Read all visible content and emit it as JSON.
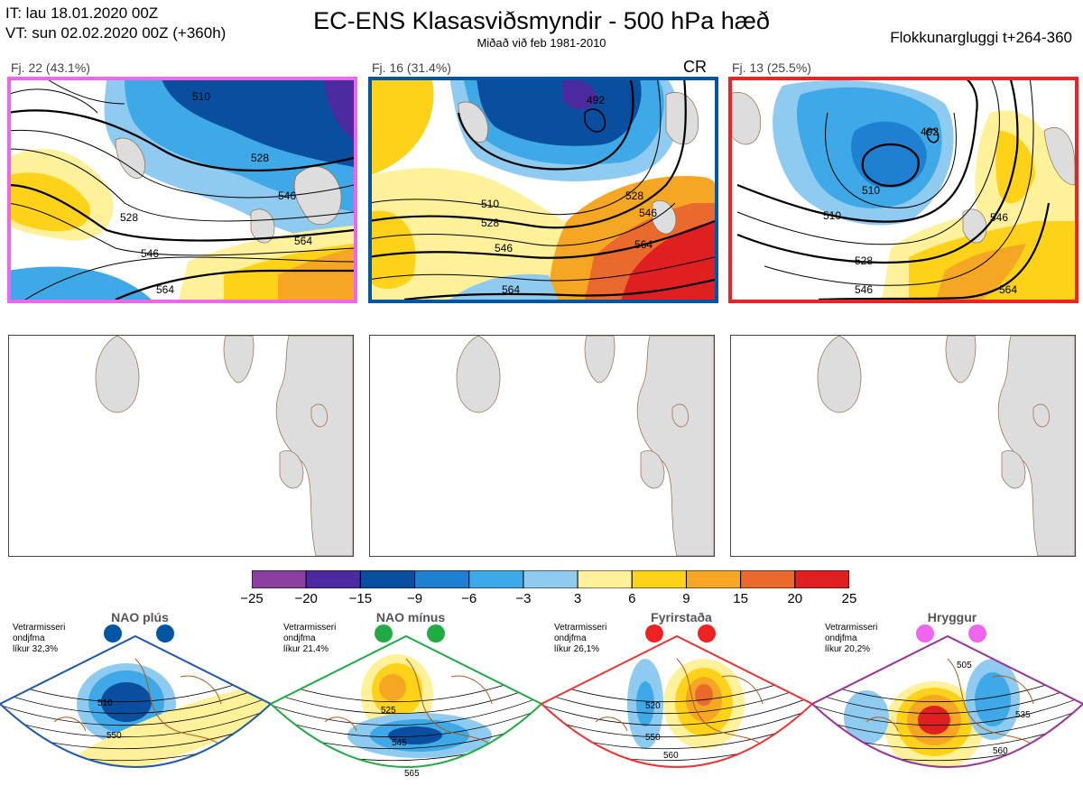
{
  "header": {
    "it_line": "IT: lau 18.01.2020 00Z",
    "vt_line": "VT: sun 02.02.2020 00Z  (+360h)",
    "title": "EC-ENS Klasasviðsmyndir - 500 hPa hæð",
    "subtitle": "Miðað við feb 1981-2010",
    "window": "Flokkunargluggi t+264-360"
  },
  "panels": [
    {
      "label": "Fj. 22 (43.1%)",
      "tag": "",
      "border_color": "#ee66ee",
      "contour_labels": [
        "528",
        "528",
        "546",
        "546",
        "564",
        "564",
        "510"
      ]
    },
    {
      "label": "Fj. 16 (31.4%)",
      "tag": "CR",
      "border_color": "#0055a4",
      "contour_labels": [
        "492",
        "510",
        "528",
        "528",
        "546",
        "546",
        "564",
        "564"
      ]
    },
    {
      "label": "Fj. 13 (25.5%)",
      "tag": "",
      "border_color": "#ee2222",
      "contour_labels": [
        "492",
        "510",
        "510",
        "528",
        "546",
        "546",
        "564"
      ]
    }
  ],
  "colorbar": {
    "ticks": [
      "−25",
      "−20",
      "−15",
      "−9",
      "−6",
      "−3",
      "3",
      "6",
      "9",
      "15",
      "20",
      "25"
    ],
    "colors": [
      "#8b3fa0",
      "#4b2aa0",
      "#0a4ea0",
      "#1f7fd0",
      "#3ea9e6",
      "#8fcaf0",
      "#ffffff",
      "#fff199",
      "#ffd21a",
      "#f5a623",
      "#ea6a2e",
      "#e02020",
      "#a0101a"
    ]
  },
  "regimes": [
    {
      "name": "NAO plús",
      "info": [
        "Vetrarmisseri",
        "ondjfma",
        "líkur 32,3%"
      ],
      "dot_color": "#0055a4",
      "frame_color": "#1e5aa8",
      "contour_labels": [
        "510",
        "550"
      ]
    },
    {
      "name": "NAO mínus",
      "info": [
        "Vetrarmisseri",
        "ondjfma",
        "líkur 21,4%"
      ],
      "dot_color": "#22aa44",
      "frame_color": "#22aa44",
      "contour_labels": [
        "525",
        "545",
        "565"
      ]
    },
    {
      "name": "Fyrirstaða",
      "info": [
        "Vetrarmisseri",
        "ondjfma",
        "líkur 26,1%"
      ],
      "dot_color": "#ee2222",
      "frame_color": "#ee3333",
      "contour_labels": [
        "520",
        "550",
        "560"
      ]
    },
    {
      "name": "Hryggur",
      "info": [
        "Vetrarmisseri",
        "ondjfma",
        "líkur 20,2%"
      ],
      "dot_color": "#ee66ee",
      "frame_color": "#993399",
      "contour_labels": [
        "505",
        "535",
        "560"
      ]
    }
  ]
}
